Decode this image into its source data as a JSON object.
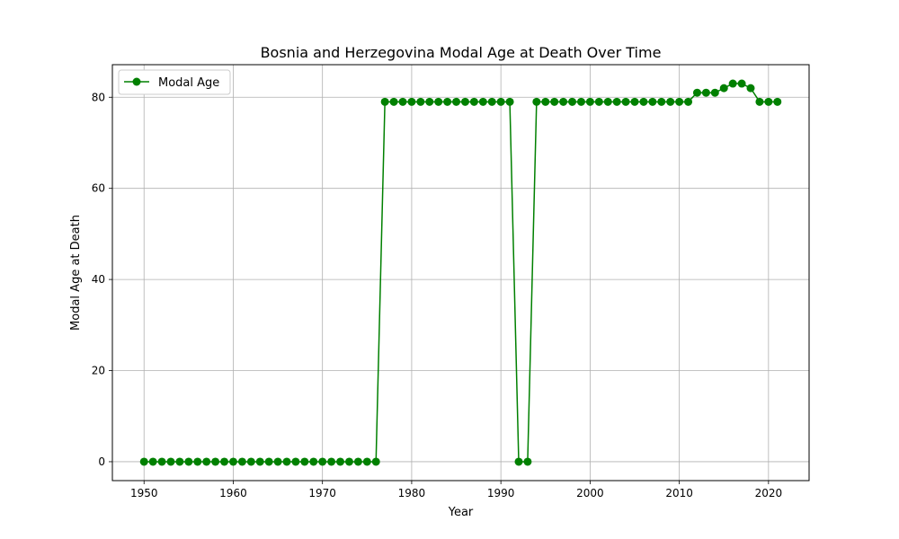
{
  "chart_data": {
    "type": "line",
    "title": "Bosnia and Herzegovina Modal Age at Death Over Time",
    "xlabel": "Year",
    "ylabel": "Modal Age at Death",
    "xlim": [
      1946.45,
      2024.55
    ],
    "ylim": [
      -4.15,
      87.15
    ],
    "x_ticks": [
      1950,
      1960,
      1970,
      1980,
      1990,
      2000,
      2010,
      2020
    ],
    "y_ticks": [
      0,
      20,
      40,
      60,
      80
    ],
    "grid": true,
    "legend_position": "top-left",
    "series": [
      {
        "name": "Modal Age",
        "color": "#008000",
        "marker": "circle",
        "x": [
          1950,
          1951,
          1952,
          1953,
          1954,
          1955,
          1956,
          1957,
          1958,
          1959,
          1960,
          1961,
          1962,
          1963,
          1964,
          1965,
          1966,
          1967,
          1968,
          1969,
          1970,
          1971,
          1972,
          1973,
          1974,
          1975,
          1976,
          1977,
          1978,
          1979,
          1980,
          1981,
          1982,
          1983,
          1984,
          1985,
          1986,
          1987,
          1988,
          1989,
          1990,
          1991,
          1992,
          1993,
          1994,
          1995,
          1996,
          1997,
          1998,
          1999,
          2000,
          2001,
          2002,
          2003,
          2004,
          2005,
          2006,
          2007,
          2008,
          2009,
          2010,
          2011,
          2012,
          2013,
          2014,
          2015,
          2016,
          2017,
          2018,
          2019,
          2020,
          2021
        ],
        "y": [
          0,
          0,
          0,
          0,
          0,
          0,
          0,
          0,
          0,
          0,
          0,
          0,
          0,
          0,
          0,
          0,
          0,
          0,
          0,
          0,
          0,
          0,
          0,
          0,
          0,
          0,
          0,
          79,
          79,
          79,
          79,
          79,
          79,
          79,
          79,
          79,
          79,
          79,
          79,
          79,
          79,
          79,
          0,
          0,
          79,
          79,
          79,
          79,
          79,
          79,
          79,
          79,
          79,
          79,
          79,
          79,
          79,
          79,
          79,
          79,
          79,
          79,
          81,
          81,
          81,
          82,
          83,
          83,
          82,
          79,
          79,
          79
        ]
      }
    ]
  }
}
